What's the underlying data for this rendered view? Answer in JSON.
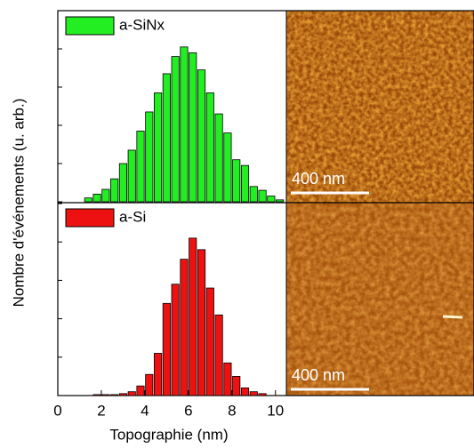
{
  "chart_data": [
    {
      "type": "bar",
      "ylabel": "Nombre d'événements (u. arb.)",
      "x": [
        1.4,
        1.8,
        2.2,
        2.6,
        3.0,
        3.4,
        3.8,
        4.2,
        4.6,
        5.0,
        5.4,
        5.8,
        6.2,
        6.6,
        7.0,
        7.4,
        7.8,
        8.2,
        8.6,
        9.0,
        9.4,
        9.8,
        10.2
      ],
      "series": [
        {
          "name": "a-SiNx",
          "color": "#22ee22",
          "values": [
            2,
            4,
            6.5,
            12,
            20,
            27,
            37,
            47,
            57,
            67,
            76,
            81,
            78,
            69,
            57,
            46,
            36,
            22,
            19,
            8,
            6,
            3,
            1
          ]
        }
      ],
      "xlim": [
        0,
        10.5
      ],
      "ylim": [
        0,
        100
      ],
      "yticks": [
        0,
        20,
        40,
        60,
        80,
        100
      ],
      "scale_bar": "400 nm"
    },
    {
      "type": "bar",
      "xlabel": "Topographie (nm)",
      "x": [
        1.8,
        2.2,
        2.6,
        3.0,
        3.4,
        3.8,
        4.2,
        4.6,
        5.0,
        5.4,
        5.8,
        6.2,
        6.6,
        7.0,
        7.4,
        7.8,
        8.2,
        8.6,
        9.0,
        9.4
      ],
      "series": [
        {
          "name": "a-Si",
          "color": "#ee1111",
          "values": [
            0.5,
            0.5,
            0.5,
            1,
            2,
            5,
            11,
            22,
            48,
            58,
            71,
            82,
            76,
            56,
            42,
            17,
            10,
            4,
            2,
            1
          ]
        }
      ],
      "xlim": [
        0,
        10.5
      ],
      "ylim": [
        0,
        100
      ],
      "xticks": [
        0,
        2,
        4,
        6,
        8,
        10
      ],
      "yticks": [
        0,
        20,
        40,
        60,
        80,
        100
      ],
      "scale_bar": "400 nm"
    }
  ]
}
